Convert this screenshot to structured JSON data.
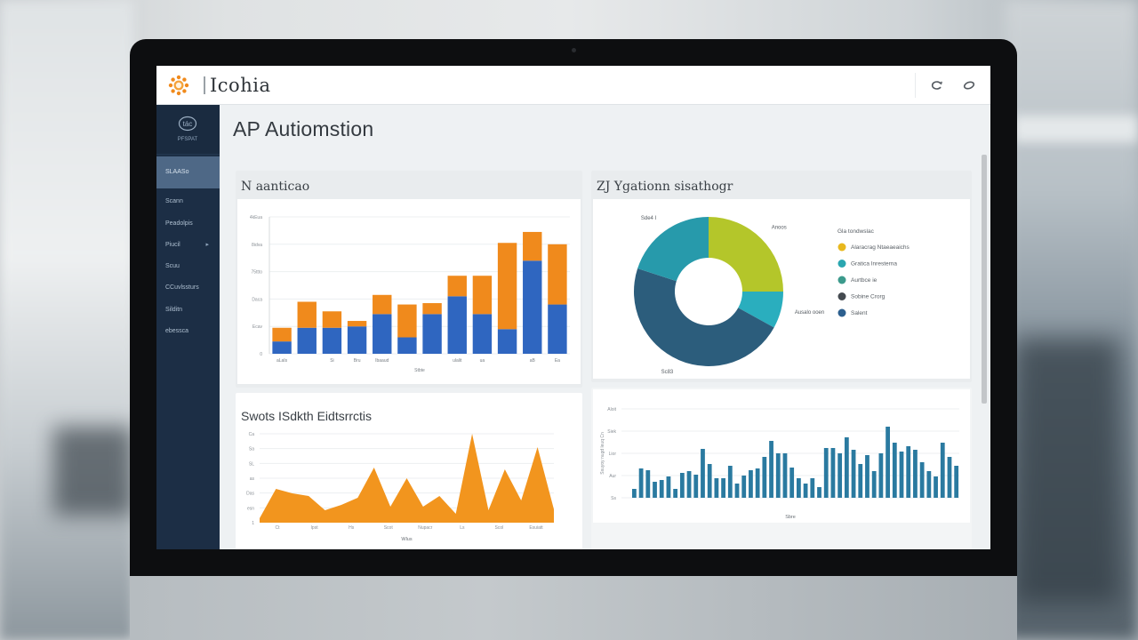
{
  "app": {
    "name": "Icohia",
    "logo_icon": "sunburst-logo-icon",
    "top_icons": [
      "refresh-icon",
      "link-icon"
    ],
    "accent_color": "#f08a1c"
  },
  "sidebar": {
    "user_label": "PFSPAT",
    "avatar_icon": "user-avatar-icon",
    "bg_color": "#1c2e45",
    "active_color": "#4e6886",
    "items": [
      {
        "label": "SLAASo",
        "active": true
      },
      {
        "label": "Scann",
        "active": false
      },
      {
        "label": "Peadolpis",
        "active": false
      },
      {
        "label": "Piucil",
        "active": false,
        "has_caret": true
      },
      {
        "label": "Scuu",
        "active": false
      },
      {
        "label": "CCuvlssturs",
        "active": false
      },
      {
        "label": "Silditn",
        "active": false
      },
      {
        "label": "ebessca",
        "active": false
      }
    ]
  },
  "page": {
    "title": "AP Autiomstion"
  },
  "panels": {
    "top_left": {
      "title": "N aanticao"
    },
    "top_right": {
      "title": "ZJ  Ygationn sisathogr"
    },
    "bottom_left": {
      "title": "Swots ISdkth Eidtsrrctis"
    },
    "bottom_right": {
      "title": ""
    }
  },
  "chart_data": [
    {
      "id": "stacked-bar",
      "type": "bar",
      "stacked": true,
      "title": "N aanticao",
      "xlabel": "Stbte",
      "ylabel": "",
      "y_ticks": [
        "0",
        "Ecav",
        "Daca",
        "75ttto",
        "8idva",
        "4kEua"
      ],
      "ylim": [
        0,
        100
      ],
      "categories": [
        "aLaIs",
        "",
        "Si",
        "Bru",
        "Ibaaud",
        "",
        "",
        "ulalit",
        "ua",
        "",
        "aB",
        "Ea"
      ],
      "series": [
        {
          "name": "Blue",
          "color": "#2f66c0",
          "values": [
            9,
            19,
            19,
            20,
            29,
            12,
            29,
            42,
            29,
            18,
            68,
            36
          ]
        },
        {
          "name": "Orange",
          "color": "#f08a1c",
          "values": [
            10,
            19,
            12,
            4,
            14,
            24,
            8,
            15,
            28,
            63,
            21,
            44
          ]
        }
      ],
      "grid": true
    },
    {
      "id": "donut",
      "type": "pie",
      "donut": true,
      "title": "ZJ  Ygationn sisathogr",
      "legend_title": "Gla tondwslac",
      "legend_position": "right",
      "slices": [
        {
          "label": "Alaracrag Ntaeaeaichs",
          "value": 25,
          "color": "#b4c62a",
          "callout": "Anoos"
        },
        {
          "label": "Gratica Inresterna",
          "value": 8,
          "color": "#2aaebe",
          "callout": "Ausalo ooen"
        },
        {
          "label": "Sobine Crorg",
          "value": 47,
          "color": "#2c5d7c",
          "callout": "Sc83"
        },
        {
          "label": "Aurtbce ie",
          "value": 20,
          "color": "#279aab",
          "callout": "Sde4 I"
        }
      ],
      "legend": [
        {
          "label": "Alaracrag Ntaeaeaichs",
          "color": "#e8b81e"
        },
        {
          "label": "Gratica Inresterna",
          "color": "#2aa6b0"
        },
        {
          "label": "Aurtbce ie",
          "color": "#3c9a8c"
        },
        {
          "label": "Sobine Crorg",
          "color": "#444a50"
        },
        {
          "label": "Salent",
          "color": "#2c5f8e"
        }
      ]
    },
    {
      "id": "area",
      "type": "area",
      "title": "Swots ISdkth Eidtsrrctis",
      "xlabel": "Wlus",
      "y_ticks": [
        "1",
        "esn",
        "Das",
        "as",
        "SL",
        "Sa",
        "Ca"
      ],
      "x_ticks": [
        "Ct",
        "Ipst",
        "Hs",
        "Scot",
        "Nupacr",
        "Ls",
        "Scol",
        "Esuiatt"
      ],
      "ylim": [
        0,
        100
      ],
      "color": "#f2951e",
      "values": [
        5,
        38,
        33,
        30,
        14,
        20,
        28,
        62,
        18,
        50,
        18,
        30,
        10,
        100,
        14,
        60,
        25,
        85,
        15
      ],
      "grid": true
    },
    {
      "id": "column",
      "type": "bar",
      "title": "",
      "xlabel": "Sbre",
      "ylabel": "Ssuyoy nugd leuq Cn",
      "y_ticks": [
        "Ss",
        "Aur",
        "Lior",
        "Siek",
        "Aloit"
      ],
      "ylim": [
        0,
        100
      ],
      "color": "#2a7aa0",
      "values": [
        10,
        33,
        31,
        18,
        20,
        24,
        10,
        28,
        30,
        26,
        55,
        38,
        22,
        22,
        36,
        16,
        25,
        31,
        33,
        46,
        64,
        50,
        50,
        34,
        22,
        16,
        22,
        12,
        56,
        56,
        50,
        68,
        54,
        38,
        48,
        30,
        50,
        80,
        62,
        52,
        58,
        54,
        40,
        30,
        24,
        62,
        46,
        36
      ],
      "grid": true
    }
  ]
}
